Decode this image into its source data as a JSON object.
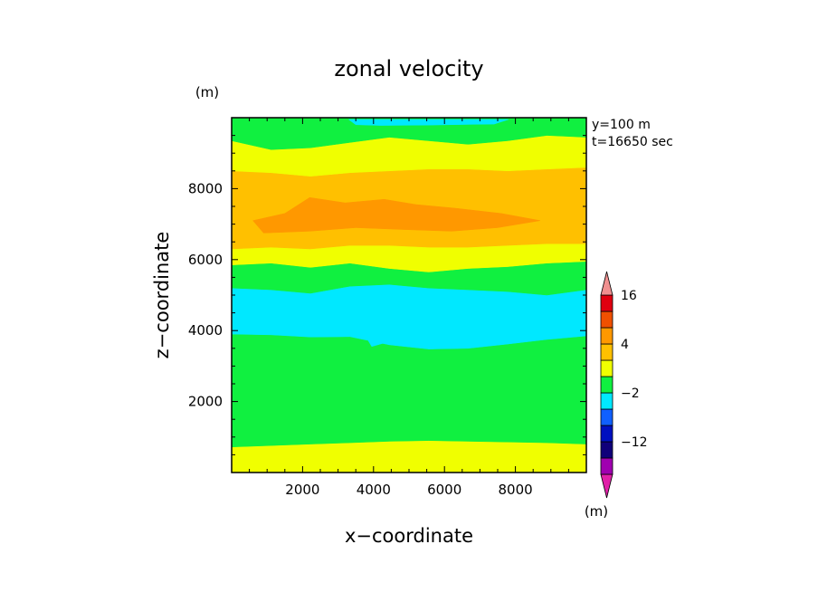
{
  "chart_data": {
    "type": "heatmap",
    "title": "zonal velocity",
    "xlabel": "x−coordinate",
    "ylabel": "z−coordinate",
    "y_unit_label": "(m)",
    "colorbar_unit_label": "(m)",
    "annotations": [
      "y=100 m",
      "t=16650 sec"
    ],
    "xlim": [
      0,
      10000
    ],
    "ylim": [
      0,
      10000
    ],
    "x_ticks": [
      2000,
      4000,
      6000,
      8000
    ],
    "y_ticks": [
      2000,
      4000,
      6000,
      8000
    ],
    "x_tick_labels": [
      "2000",
      "4000",
      "6000",
      "8000"
    ],
    "y_tick_labels": [
      "2000",
      "4000",
      "6000",
      "8000"
    ],
    "levels": [
      {
        "name": "lt_-16",
        "color": "#e020a8"
      },
      {
        "name": "-16_-12",
        "color": "#a000b0"
      },
      {
        "name": "-12_-8",
        "color": "#10007a"
      },
      {
        "name": "-8_-4",
        "color": "#0010c0"
      },
      {
        "name": "-4_-2",
        "color": "#1060ff"
      },
      {
        "name": "-2_0",
        "color": "#00e8ff"
      },
      {
        "name": "0_2",
        "color": "#10f040"
      },
      {
        "name": "2_4",
        "color": "#f0ff00"
      },
      {
        "name": "4_8",
        "color": "#ffc000"
      },
      {
        "name": "8_12",
        "color": "#ff9800"
      },
      {
        "name": "12_16",
        "color": "#f05000"
      },
      {
        "name": "16_20",
        "color": "#e00010"
      },
      {
        "name": "gt_20",
        "color": "#f09090"
      }
    ],
    "colorbar_labels": [
      {
        "text": "16",
        "at_boundary": 11
      },
      {
        "text": "4",
        "at_boundary": 8
      },
      {
        "text": "−2",
        "at_boundary": 5
      },
      {
        "text": "−12",
        "at_boundary": 2
      }
    ],
    "bands_bottom_to_top": [
      {
        "level": "2_4",
        "z_top": [
          720,
          760,
          800,
          840,
          880,
          900,
          880,
          860,
          840,
          800
        ]
      },
      {
        "level": "0_2",
        "z_top": [
          3900,
          3880,
          3820,
          3830,
          3600,
          3480,
          3500,
          3620,
          3750,
          3850
        ]
      },
      {
        "level": "-2_0",
        "z_top": [
          5200,
          5150,
          5050,
          5250,
          5300,
          5200,
          5150,
          5100,
          5000,
          5150
        ]
      },
      {
        "level": "0_2",
        "z_top": [
          5850,
          5900,
          5780,
          5900,
          5750,
          5650,
          5750,
          5800,
          5900,
          5950
        ]
      },
      {
        "level": "2_4",
        "z_top": [
          6300,
          6350,
          6300,
          6400,
          6400,
          6350,
          6350,
          6400,
          6450,
          6450
        ]
      },
      {
        "level": "4_8",
        "z_top": [
          8500,
          8450,
          8350,
          8450,
          8500,
          8550,
          8550,
          8500,
          8550,
          8600
        ]
      },
      {
        "level": "2_4",
        "z_top": [
          9350,
          9100,
          9150,
          9300,
          9450,
          9350,
          9250,
          9350,
          9500,
          9450
        ]
      },
      {
        "level": "0_2",
        "z_top": [
          10000,
          10000,
          10000,
          10000,
          10000,
          10000,
          10000,
          10000,
          10000,
          10000
        ]
      }
    ],
    "patches": [
      {
        "level": "8_12",
        "points": [
          [
            600,
            7100
          ],
          [
            1500,
            7300
          ],
          [
            2200,
            7750
          ],
          [
            3200,
            7600
          ],
          [
            4300,
            7700
          ],
          [
            5200,
            7550
          ],
          [
            6300,
            7450
          ],
          [
            7600,
            7300
          ],
          [
            8700,
            7100
          ],
          [
            7500,
            6900
          ],
          [
            6200,
            6800
          ],
          [
            4800,
            6850
          ],
          [
            3500,
            6900
          ],
          [
            2200,
            6800
          ],
          [
            900,
            6750
          ]
        ]
      },
      {
        "level": "-2_0",
        "points": [
          [
            3300,
            9950
          ],
          [
            3500,
            9800
          ],
          [
            4200,
            9780
          ],
          [
            5500,
            9790
          ],
          [
            6800,
            9810
          ],
          [
            7400,
            9820
          ],
          [
            7800,
            9950
          ]
        ]
      },
      {
        "level": "-2_0",
        "points": [
          [
            3800,
            3800
          ],
          [
            4050,
            3950
          ],
          [
            4300,
            3650
          ],
          [
            3950,
            3550
          ]
        ]
      }
    ]
  }
}
